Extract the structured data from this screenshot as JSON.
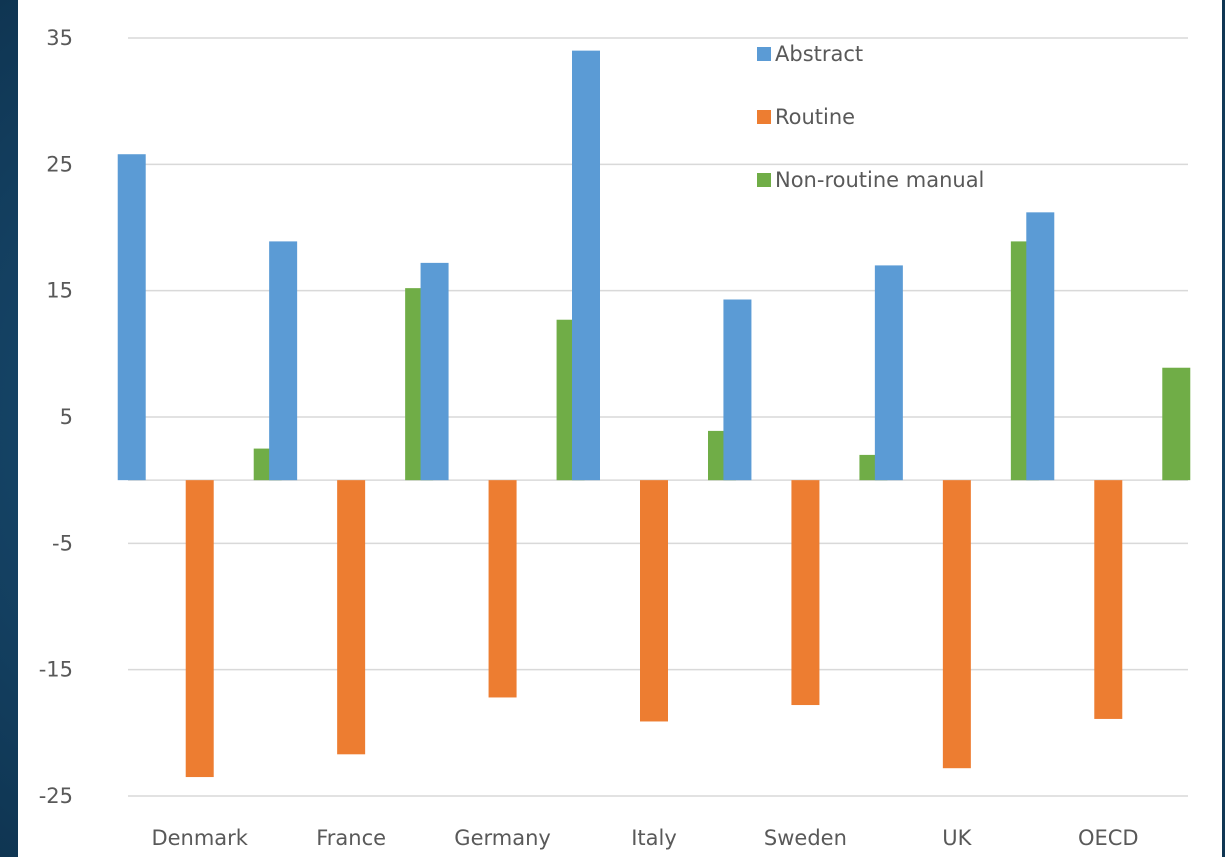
{
  "chart_data": {
    "type": "bar",
    "categories": [
      "Denmark",
      "France",
      "Germany",
      "Italy",
      "Sweden",
      "UK",
      "OECD"
    ],
    "series": [
      {
        "name": "Abstract",
        "color": "#5b9bd5",
        "values": [
          25.8,
          18.9,
          17.2,
          34.0,
          14.3,
          17.0,
          21.2
        ]
      },
      {
        "name": "Routine",
        "color": "#ed7d31",
        "values": [
          -23.5,
          -21.7,
          -17.2,
          -19.1,
          -17.8,
          -22.8,
          -18.9
        ]
      },
      {
        "name": "Non-routine manual",
        "color": "#70ad47",
        "values": [
          2.5,
          15.2,
          12.7,
          3.9,
          2.0,
          18.9,
          8.9
        ]
      }
    ],
    "yticks": [
      "35",
      "25",
      "15",
      "5",
      "-5",
      "-15",
      "-25"
    ],
    "ylim": [
      -25,
      35
    ],
    "grid": true,
    "legend_position": "top-right",
    "title": "",
    "xlabel": "",
    "ylabel": ""
  }
}
